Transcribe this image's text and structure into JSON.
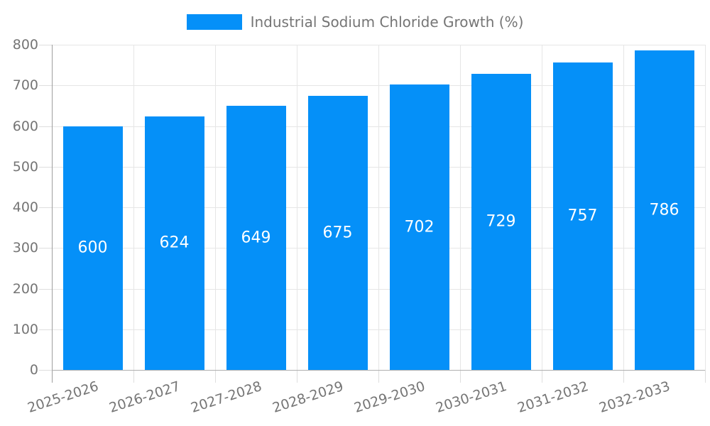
{
  "chart_data": {
    "type": "bar",
    "title": "Industrial Sodium Chloride Growth (%)",
    "categories": [
      "2025-2026",
      "2026-2027",
      "2027-2028",
      "2028-2029",
      "2029-2030",
      "2030-2031",
      "2031-2032",
      "2032-2033"
    ],
    "values": [
      600,
      624,
      649,
      675,
      702,
      729,
      757,
      786
    ],
    "ylim": [
      0,
      800
    ],
    "ytick_step": 100,
    "ytick_labels": [
      "0",
      "100",
      "200",
      "300",
      "400",
      "500",
      "600",
      "700",
      "800"
    ],
    "grid": true,
    "legend_position": "top",
    "x_label_rotation_deg": -18,
    "colors": {
      "bar": "#0590f8",
      "bar_value_text": "#ffffff",
      "axis_text": "#757575",
      "gridline": "#e6e6e6",
      "tick": "#dedede",
      "axis_line": "#9e9e9e",
      "baseline": "#b0b0b0",
      "background": "#ffffff"
    }
  }
}
